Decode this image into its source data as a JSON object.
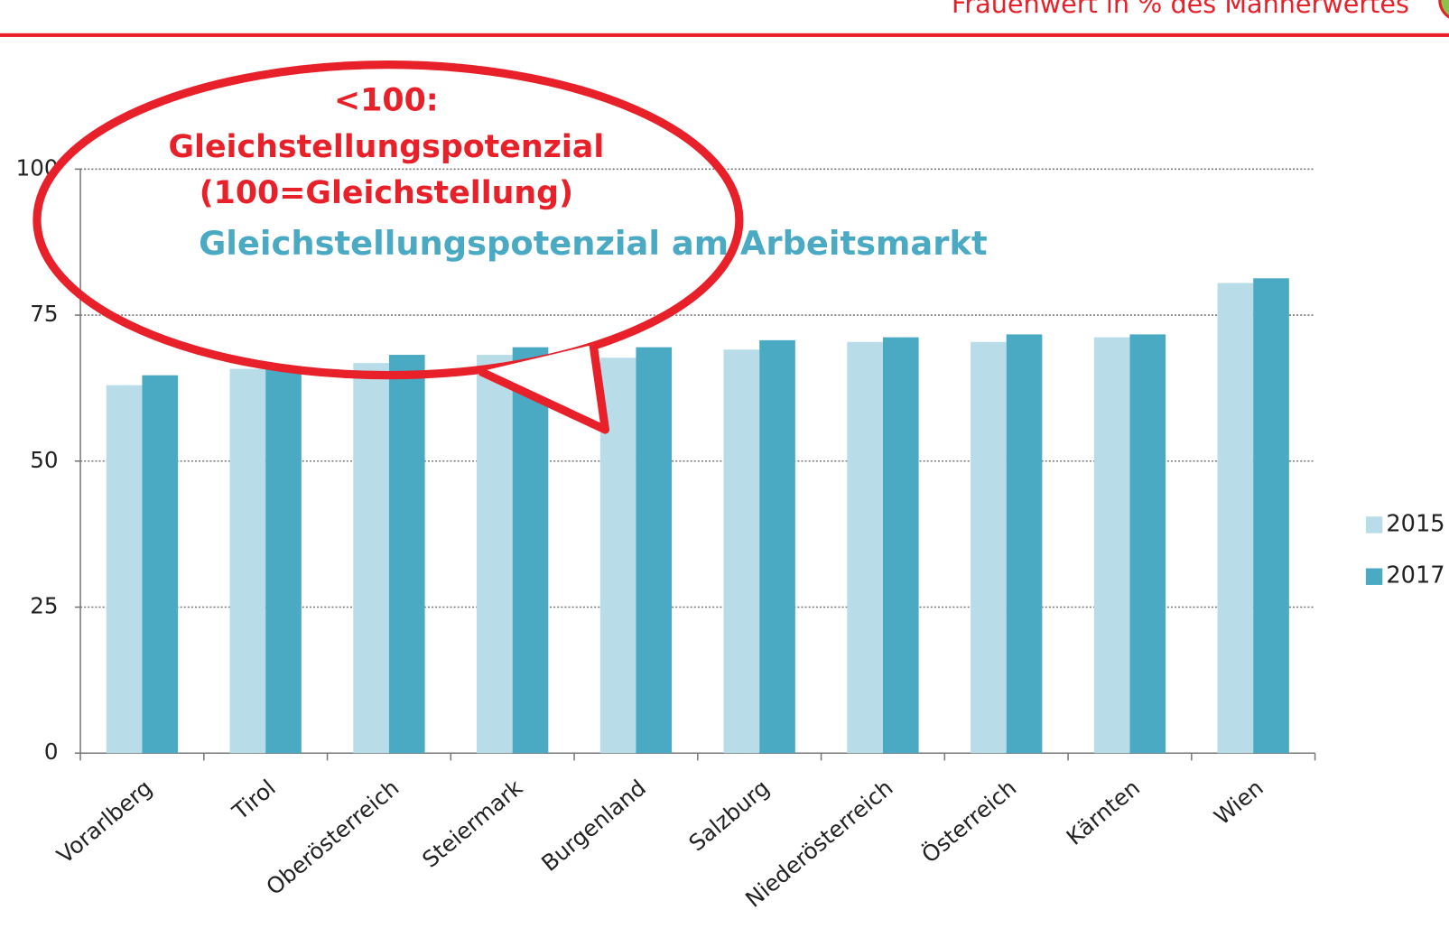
{
  "header": {
    "subtitle": "Frauenwert in % des Männerwertes"
  },
  "chart_data": {
    "type": "bar",
    "title": "Gleichstellungspotenzial am Arbeitsmarkt",
    "annotation": [
      "<100:",
      "Gleichstellungspotenzial",
      "(100=Gleichstellung)"
    ],
    "categories": [
      "Vorarlberg",
      "Tirol",
      "Oberösterreich",
      "Steiermark",
      "Burgenland",
      "Salzburg",
      "Niederösterreich",
      "Österreich",
      "Kärnten",
      "Wien"
    ],
    "series": [
      {
        "name": "2015",
        "color": "#b9dde8",
        "values": [
          63.0,
          65.8,
          66.8,
          68.2,
          67.7,
          69.1,
          70.4,
          70.4,
          71.2,
          80.5
        ]
      },
      {
        "name": "2017",
        "color": "#4aaac4",
        "values": [
          64.7,
          66.3,
          68.2,
          69.5,
          69.5,
          70.7,
          71.2,
          71.7,
          71.7,
          81.3
        ]
      }
    ],
    "ylim": [
      0,
      100
    ],
    "yticks": [
      0,
      25,
      50,
      75,
      100
    ],
    "grid": true,
    "legend": "right"
  }
}
